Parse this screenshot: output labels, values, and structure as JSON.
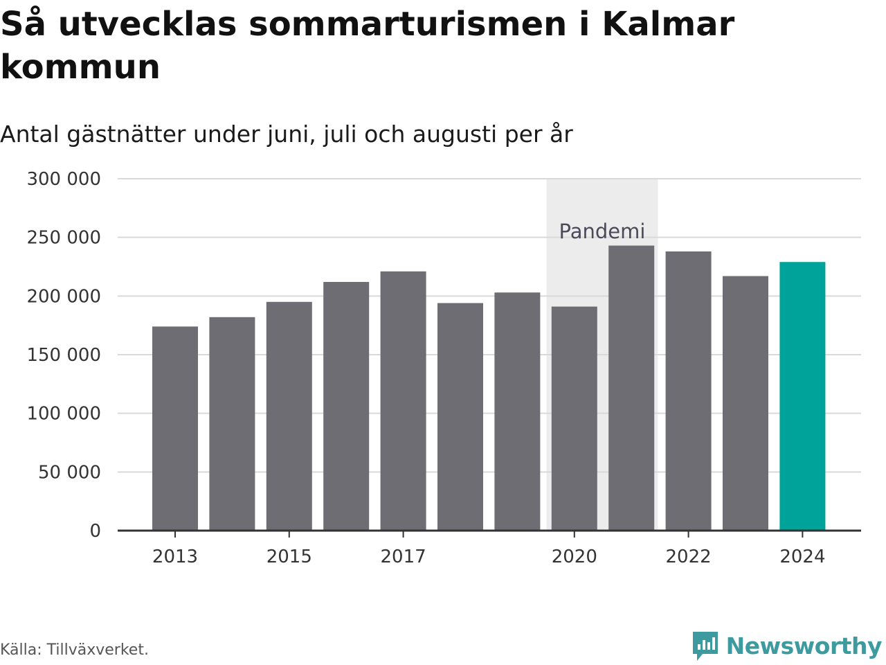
{
  "header": {
    "title": "Så utvecklas sommarturismen i Kalmar kommun",
    "subtitle": "Antal gästnätter under juni, juli och augusti per år"
  },
  "footer": {
    "source": "Källa: Tillväxverket.",
    "brand": "Newsworthy"
  },
  "colors": {
    "bar": "#6e6d73",
    "highlight": "#00a39a",
    "band": "#ececec",
    "grid": "#d9d9d9",
    "axis": "#333333",
    "brand": "#3d9ba0"
  },
  "chart_data": {
    "type": "bar",
    "title": "Så utvecklas sommarturismen i Kalmar kommun",
    "subtitle": "Antal gästnätter under juni, juli och augusti per år",
    "categories": [
      "2013",
      "2014",
      "2015",
      "2016",
      "2017",
      "2018",
      "2019",
      "2020",
      "2021",
      "2022",
      "2023",
      "2024"
    ],
    "values": [
      174000,
      182000,
      195000,
      212000,
      221000,
      194000,
      203000,
      191000,
      243000,
      238000,
      217000,
      229000
    ],
    "highlight_category": "2024",
    "x_tick_labels": [
      "2013",
      "2015",
      "2017",
      "2020",
      "2022",
      "2024"
    ],
    "y_ticks": [
      0,
      50000,
      100000,
      150000,
      200000,
      250000,
      300000
    ],
    "y_tick_labels": [
      "0",
      "50 000",
      "100 000",
      "150 000",
      "200 000",
      "250 000",
      "300 000"
    ],
    "ylim": [
      0,
      300000
    ],
    "grid": true,
    "legend": "none",
    "annotation": {
      "label": "Pandemi",
      "from": "2020",
      "to": "2021"
    }
  }
}
